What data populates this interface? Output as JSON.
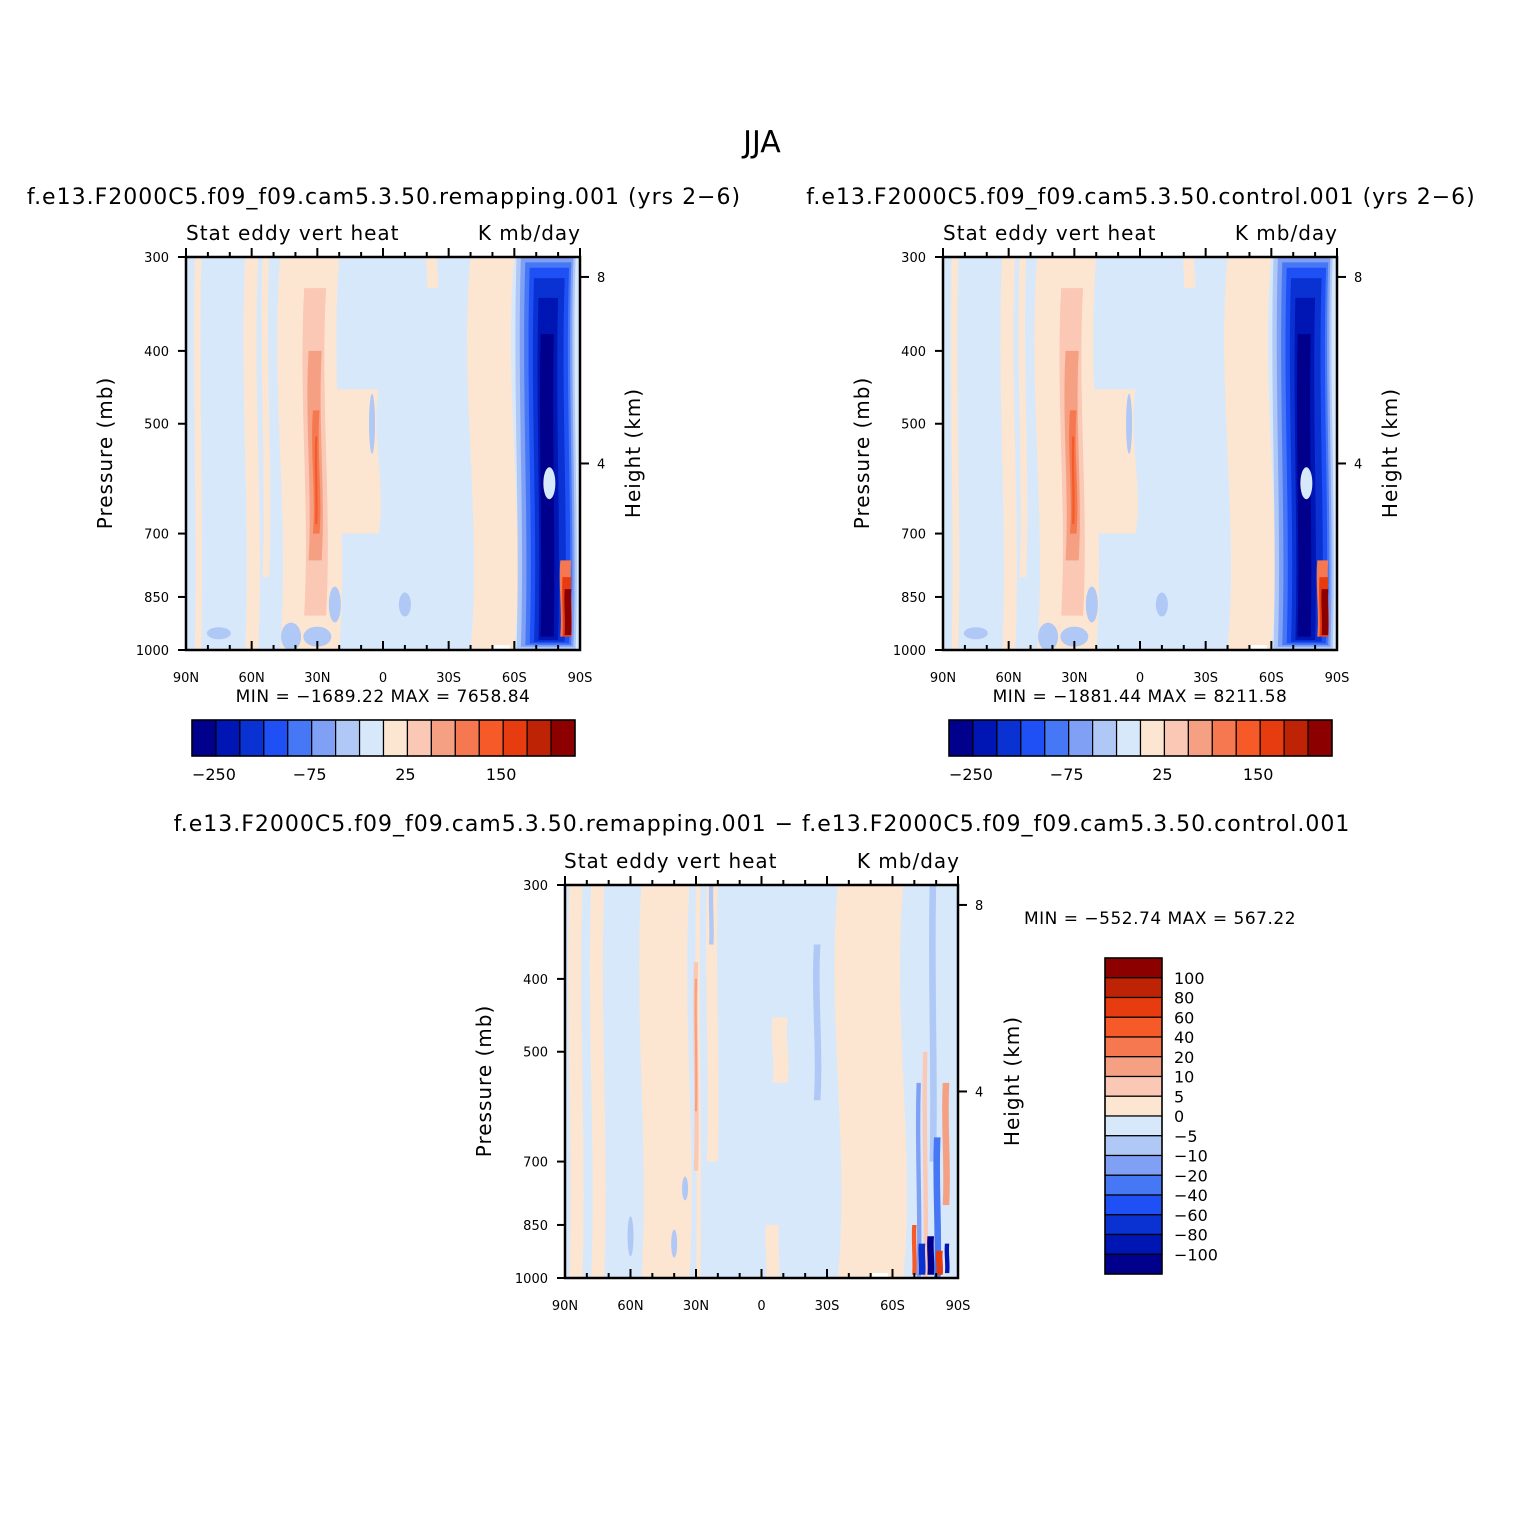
{
  "figure": {
    "title": "JJA"
  },
  "palettes": {
    "main": [
      "#00008c",
      "#0016b4",
      "#0a32d2",
      "#1e50f5",
      "#4678f5",
      "#7fa0f5",
      "#afc8f5",
      "#d7e8fa",
      "#fce6d2",
      "#fac8b4",
      "#f5a082",
      "#f57850",
      "#f55a28",
      "#e63c0f",
      "#be2305",
      "#8c0000"
    ],
    "diff": [
      "#00008c",
      "#0016b4",
      "#0a32d2",
      "#1e50f5",
      "#4678f5",
      "#7fa0f5",
      "#afc8f5",
      "#d7e8fa",
      "#fce6d2",
      "#fac8b4",
      "#f5a082",
      "#f57850",
      "#f55a28",
      "#e63c0f",
      "#be2305",
      "#8c0000"
    ]
  },
  "panels": [
    {
      "case": "f.e13.F2000C5.f09_f09.cam5.3.50.remapping.001 (yrs 2−6)",
      "left_label": "Stat eddy vert heat",
      "right_label": "K mb/day",
      "ylabel": "Pressure (mb)",
      "y2label": "Height (km)",
      "min_max": "MIN = −1689.22   MAX = 7658.84",
      "colorbar_labels": [
        "−250",
        "−75",
        "25",
        "150"
      ]
    },
    {
      "case": "f.e13.F2000C5.f09_f09.cam5.3.50.control.001 (yrs 2−6)",
      "left_label": "Stat eddy vert heat",
      "right_label": "K mb/day",
      "ylabel": "Pressure (mb)",
      "y2label": "Height (km)",
      "min_max": "MIN = −1881.44   MAX = 8211.58",
      "colorbar_labels": [
        "−250",
        "−75",
        "25",
        "150"
      ]
    },
    {
      "case": "f.e13.F2000C5.f09_f09.cam5.3.50.remapping.001 − f.e13.F2000C5.f09_f09.cam5.3.50.control.001",
      "left_label": "Stat eddy vert heat",
      "right_label": "K mb/day",
      "ylabel": "Pressure (mb)",
      "y2label": "Height (km)",
      "min_max": "MIN = −552.74   MAX = 567.22",
      "colorbar_labels": [
        "100",
        "80",
        "60",
        "40",
        "20",
        "10",
        "5",
        "0",
        "−5",
        "−10",
        "−20",
        "−40",
        "−60",
        "−80",
        "−100"
      ]
    }
  ],
  "chart_data": [
    {
      "type": "heatmap",
      "title": "Stat eddy vert heat",
      "units": "K mb/day",
      "xlabel": "",
      "ylabel": "Pressure (mb)",
      "y2label": "Height (km)",
      "x_ticks": [
        "90N",
        "60N",
        "30N",
        "0",
        "30S",
        "60S",
        "90S"
      ],
      "x_tick_values": [
        90,
        60,
        30,
        0,
        -30,
        -60,
        -90
      ],
      "y_ticks": [
        300,
        400,
        500,
        700,
        850,
        1000
      ],
      "y2_ticks": [
        8,
        4
      ],
      "xlim": [
        90,
        -90
      ],
      "ylim": [
        1000,
        300
      ],
      "y_scale": "log",
      "min": -1689.22,
      "max": 7658.84,
      "features": [
        {
          "lat": 30,
          "p_top": 300,
          "p_bot": 900,
          "value": 80
        },
        {
          "lat": 52,
          "p_top": 300,
          "p_bot": 1000,
          "value": 15
        },
        {
          "lat": 75,
          "p_top": 300,
          "p_bot": 1000,
          "value": -300
        },
        {
          "lat": 83,
          "p_top": 750,
          "p_bot": 1000,
          "value": 300
        }
      ]
    },
    {
      "type": "heatmap",
      "title": "Stat eddy vert heat",
      "units": "K mb/day",
      "xlabel": "",
      "ylabel": "Pressure (mb)",
      "y2label": "Height (km)",
      "x_ticks": [
        "90N",
        "60N",
        "30N",
        "0",
        "30S",
        "60S",
        "90S"
      ],
      "x_tick_values": [
        90,
        60,
        30,
        0,
        -30,
        -60,
        -90
      ],
      "y_ticks": [
        300,
        400,
        500,
        700,
        850,
        1000
      ],
      "y2_ticks": [
        8,
        4
      ],
      "xlim": [
        90,
        -90
      ],
      "ylim": [
        1000,
        300
      ],
      "y_scale": "log",
      "min": -1881.44,
      "max": 8211.58,
      "features": [
        {
          "lat": 30,
          "p_top": 300,
          "p_bot": 900,
          "value": 85
        },
        {
          "lat": 52,
          "p_top": 300,
          "p_bot": 1000,
          "value": 15
        },
        {
          "lat": 75,
          "p_top": 300,
          "p_bot": 1000,
          "value": -300
        },
        {
          "lat": 83,
          "p_top": 750,
          "p_bot": 1000,
          "value": 320
        }
      ]
    },
    {
      "type": "heatmap",
      "title": "Stat eddy vert heat",
      "units": "K mb/day",
      "xlabel": "",
      "ylabel": "Pressure (mb)",
      "y2label": "Height (km)",
      "x_ticks": [
        "90N",
        "60N",
        "30N",
        "0",
        "30S",
        "60S",
        "90S"
      ],
      "x_tick_values": [
        90,
        60,
        30,
        0,
        -30,
        -60,
        -90
      ],
      "y_ticks": [
        300,
        400,
        500,
        700,
        850,
        1000
      ],
      "y2_ticks": [
        8,
        4
      ],
      "xlim": [
        90,
        -90
      ],
      "ylim": [
        1000,
        300
      ],
      "y_scale": "log",
      "min": -552.74,
      "max": 567.22,
      "colorbar_levels": [
        100,
        80,
        60,
        40,
        20,
        10,
        5,
        0,
        -5,
        -10,
        -20,
        -40,
        -60,
        -80,
        -100
      ]
    }
  ]
}
